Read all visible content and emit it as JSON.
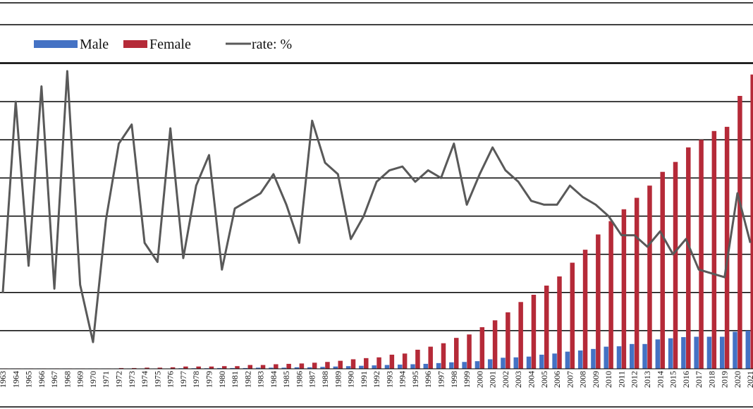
{
  "chart_data": {
    "type": "bar",
    "grid": true,
    "legend_placement": "top-left",
    "categories": [
      "1963",
      "1964",
      "1965",
      "1966",
      "1967",
      "1968",
      "1969",
      "1970",
      "1971",
      "1972",
      "1973",
      "1974",
      "1975",
      "1976",
      "1977",
      "1978",
      "1979",
      "1980",
      "1981",
      "1982",
      "1983",
      "1984",
      "1985",
      "1986",
      "1987",
      "1988",
      "1989",
      "1990",
      "1991",
      "1992",
      "1993",
      "1994",
      "1995",
      "1996",
      "1997",
      "1998",
      "1999",
      "2000",
      "2001",
      "2002",
      "2003",
      "2004",
      "2005",
      "2006",
      "2007",
      "2008",
      "2009",
      "2010",
      "2011",
      "2012",
      "2013",
      "2014",
      "2015",
      "2016",
      "2017",
      "2018",
      "2019",
      "2020",
      "2021"
    ],
    "bar_axis_max": 8,
    "rate_axis_max": 8,
    "series": [
      {
        "name": "Male",
        "kind": "bar",
        "color": "#4472C4",
        "values": [
          0.01,
          0.01,
          0.01,
          0.01,
          0.01,
          0.01,
          0.01,
          0.01,
          0.01,
          0.01,
          0.01,
          0.01,
          0.01,
          0.01,
          0.015,
          0.015,
          0.015,
          0.02,
          0.02,
          0.02,
          0.03,
          0.03,
          0.03,
          0.04,
          0.04,
          0.05,
          0.06,
          0.07,
          0.08,
          0.09,
          0.1,
          0.11,
          0.12,
          0.13,
          0.15,
          0.17,
          0.18,
          0.2,
          0.25,
          0.29,
          0.3,
          0.32,
          0.37,
          0.4,
          0.45,
          0.48,
          0.52,
          0.58,
          0.59,
          0.65,
          0.65,
          0.77,
          0.8,
          0.83,
          0.84,
          0.84,
          0.84,
          0.97,
          1.0
        ]
      },
      {
        "name": "Female",
        "kind": "bar",
        "color": "#B52A38",
        "values": [
          0.01,
          0.01,
          0.01,
          0.01,
          0.01,
          0.01,
          0.01,
          0.01,
          0.01,
          0.02,
          0.02,
          0.03,
          0.03,
          0.04,
          0.06,
          0.06,
          0.06,
          0.07,
          0.07,
          0.1,
          0.1,
          0.12,
          0.13,
          0.14,
          0.16,
          0.18,
          0.21,
          0.25,
          0.28,
          0.3,
          0.37,
          0.4,
          0.5,
          0.58,
          0.67,
          0.81,
          0.9,
          1.09,
          1.27,
          1.48,
          1.75,
          1.94,
          2.18,
          2.42,
          2.78,
          3.12,
          3.52,
          3.87,
          4.18,
          4.48,
          4.8,
          5.16,
          5.42,
          5.8,
          6.0,
          6.23,
          6.34,
          7.15,
          7.71
        ]
      },
      {
        "name": "rate: %",
        "kind": "line",
        "color": "#595959",
        "values": [
          2.0,
          7.0,
          2.7,
          7.4,
          2.1,
          7.8,
          2.2,
          0.7,
          3.9,
          5.9,
          6.4,
          3.3,
          2.8,
          6.3,
          2.9,
          4.8,
          5.6,
          2.6,
          4.2,
          4.4,
          4.6,
          5.1,
          4.3,
          3.3,
          6.5,
          5.4,
          5.1,
          3.4,
          4.0,
          4.9,
          5.2,
          5.3,
          4.9,
          5.2,
          5.0,
          5.9,
          4.3,
          5.1,
          5.8,
          5.2,
          4.9,
          4.4,
          4.3,
          4.3,
          4.8,
          4.5,
          4.3,
          4.0,
          3.5,
          3.5,
          3.2,
          3.6,
          3.0,
          3.4,
          2.6,
          2.5,
          2.4,
          4.6,
          3.3
        ]
      }
    ]
  }
}
